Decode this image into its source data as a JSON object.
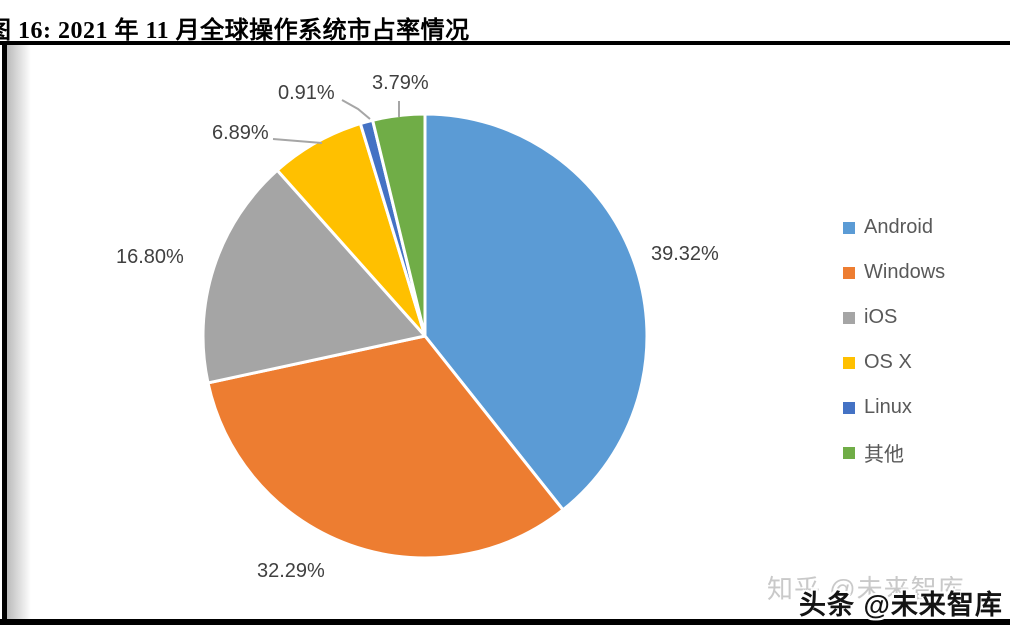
{
  "header": {
    "title": "图 16: 2021 年 11 月全球操作系统市占率情况"
  },
  "chart_data": {
    "type": "pie",
    "title": "2021 年 11 月全球操作系统市占率情况",
    "unit": "percent",
    "start_angle_deg": 0,
    "direction": "clockwise",
    "legend_position": "right",
    "slices": [
      {
        "label": "Android",
        "value": 39.32,
        "display": "39.32%",
        "color": "#5B9BD5"
      },
      {
        "label": "Windows",
        "value": 32.29,
        "display": "32.29%",
        "color": "#ED7D31"
      },
      {
        "label": "iOS",
        "value": 16.8,
        "display": "16.80%",
        "color": "#A5A5A5"
      },
      {
        "label": "OS X",
        "value": 6.89,
        "display": "6.89%",
        "color": "#FFC000"
      },
      {
        "label": "Linux",
        "value": 0.91,
        "display": "0.91%",
        "color": "#4472C4"
      },
      {
        "label": "其他",
        "value": 3.79,
        "display": "3.79%",
        "color": "#70AD47"
      }
    ],
    "leader_line_color": "#A6A6A6",
    "slice_border_color": "#FFFFFF"
  },
  "watermarks": {
    "zhihu": "知乎 @未来智库",
    "toutiao": "头条 @未来智库"
  }
}
